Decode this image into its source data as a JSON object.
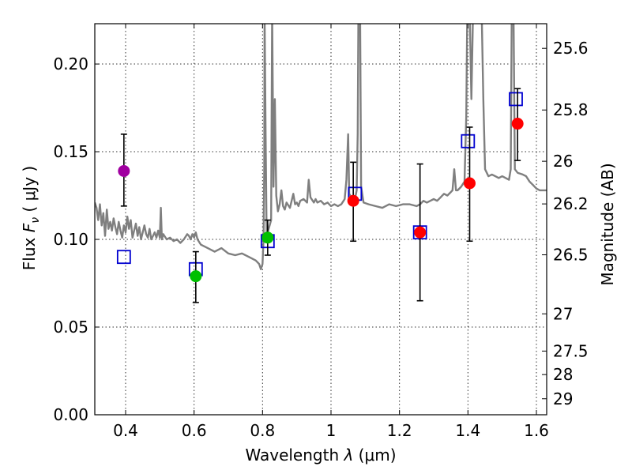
{
  "chart_data": {
    "type": "scatter",
    "title": "",
    "xlabel_prefix": "Wavelength ",
    "xlabel_symbol": "λ",
    "xlabel_unit": " (μm)",
    "ylabel_prefix": "Flux ",
    "ylabel_symbol": "F",
    "ylabel_subscript": "ν",
    "ylabel_unit": "  ( μJy )",
    "ylabel_right": "Magnitude (AB)",
    "xlim": [
      0.31,
      1.63
    ],
    "ylim": [
      0.0,
      0.223
    ],
    "grid": true,
    "x_ticks": [
      {
        "value": 0.4,
        "label": "0.4"
      },
      {
        "value": 0.6,
        "label": "0.6"
      },
      {
        "value": 0.8,
        "label": "0.8"
      },
      {
        "value": 1.0,
        "label": "1"
      },
      {
        "value": 1.2,
        "label": "1.2"
      },
      {
        "value": 1.4,
        "label": "1.4"
      },
      {
        "value": 1.6,
        "label": "1.6"
      }
    ],
    "y_ticks": [
      {
        "value": 0.0,
        "label": "0.00"
      },
      {
        "value": 0.05,
        "label": "0.05"
      },
      {
        "value": 0.1,
        "label": "0.10"
      },
      {
        "value": 0.15,
        "label": "0.15"
      },
      {
        "value": 0.2,
        "label": "0.20"
      }
    ],
    "mag_ticks": [
      {
        "value": 25.6,
        "label": "25.6"
      },
      {
        "value": 25.8,
        "label": "25.8"
      },
      {
        "value": 26.0,
        "label": "26"
      },
      {
        "value": 26.2,
        "label": "26.2"
      },
      {
        "value": 26.5,
        "label": "26.5"
      },
      {
        "value": 27.0,
        "label": "27"
      },
      {
        "value": 27.5,
        "label": "27.5"
      },
      {
        "value": 28.0,
        "label": "28"
      },
      {
        "value": 29.0,
        "label": "29"
      }
    ],
    "colors": {
      "spectrum": "#7f7f7f",
      "model": "#0000d0",
      "purple": "#a000a0",
      "green": "#00c000",
      "red": "#ff0000",
      "errorbar": "#000000"
    },
    "observed": [
      {
        "x": 0.395,
        "y": 0.139,
        "yerr_low": 0.119,
        "yerr_high": 0.16,
        "color": "purple"
      },
      {
        "x": 0.605,
        "y": 0.079,
        "yerr_low": 0.064,
        "yerr_high": 0.093,
        "color": "green"
      },
      {
        "x": 0.815,
        "y": 0.101,
        "yerr_low": 0.091,
        "yerr_high": 0.111,
        "color": "green"
      },
      {
        "x": 1.065,
        "y": 0.122,
        "yerr_low": 0.099,
        "yerr_high": 0.144,
        "color": "red"
      },
      {
        "x": 1.26,
        "y": 0.104,
        "yerr_low": 0.065,
        "yerr_high": 0.143,
        "color": "red"
      },
      {
        "x": 1.405,
        "y": 0.132,
        "yerr_low": 0.099,
        "yerr_high": 0.164,
        "color": "red"
      },
      {
        "x": 1.545,
        "y": 0.166,
        "yerr_low": 0.145,
        "yerr_high": 0.186,
        "color": "red"
      }
    ],
    "model_points": [
      {
        "x": 0.395,
        "y": 0.09
      },
      {
        "x": 0.605,
        "y": 0.083
      },
      {
        "x": 0.815,
        "y": 0.099
      },
      {
        "x": 1.07,
        "y": 0.126
      },
      {
        "x": 1.26,
        "y": 0.104
      },
      {
        "x": 1.4,
        "y": 0.156
      },
      {
        "x": 1.54,
        "y": 0.18
      }
    ],
    "spectrum": [
      [
        0.31,
        0.121
      ],
      [
        0.315,
        0.118
      ],
      [
        0.32,
        0.111
      ],
      [
        0.325,
        0.12
      ],
      [
        0.33,
        0.108
      ],
      [
        0.335,
        0.115
      ],
      [
        0.34,
        0.102
      ],
      [
        0.345,
        0.117
      ],
      [
        0.35,
        0.106
      ],
      [
        0.355,
        0.11
      ],
      [
        0.36,
        0.105
      ],
      [
        0.365,
        0.112
      ],
      [
        0.37,
        0.107
      ],
      [
        0.375,
        0.103
      ],
      [
        0.38,
        0.11
      ],
      [
        0.385,
        0.105
      ],
      [
        0.39,
        0.101
      ],
      [
        0.395,
        0.108
      ],
      [
        0.4,
        0.104
      ],
      [
        0.405,
        0.113
      ],
      [
        0.41,
        0.106
      ],
      [
        0.415,
        0.111
      ],
      [
        0.42,
        0.101
      ],
      [
        0.425,
        0.105
      ],
      [
        0.43,
        0.109
      ],
      [
        0.435,
        0.102
      ],
      [
        0.44,
        0.107
      ],
      [
        0.445,
        0.1
      ],
      [
        0.45,
        0.104
      ],
      [
        0.455,
        0.108
      ],
      [
        0.46,
        0.103
      ],
      [
        0.465,
        0.101
      ],
      [
        0.47,
        0.106
      ],
      [
        0.475,
        0.1
      ],
      [
        0.48,
        0.102
      ],
      [
        0.485,
        0.104
      ],
      [
        0.49,
        0.101
      ],
      [
        0.495,
        0.105
      ],
      [
        0.5,
        0.101
      ],
      [
        0.503,
        0.118
      ],
      [
        0.506,
        0.1
      ],
      [
        0.51,
        0.103
      ],
      [
        0.52,
        0.1
      ],
      [
        0.53,
        0.101
      ],
      [
        0.54,
        0.099
      ],
      [
        0.55,
        0.1
      ],
      [
        0.56,
        0.098
      ],
      [
        0.57,
        0.1
      ],
      [
        0.58,
        0.103
      ],
      [
        0.585,
        0.102
      ],
      [
        0.59,
        0.1
      ],
      [
        0.595,
        0.103
      ],
      [
        0.6,
        0.101
      ],
      [
        0.605,
        0.104
      ],
      [
        0.61,
        0.1
      ],
      [
        0.62,
        0.097
      ],
      [
        0.64,
        0.095
      ],
      [
        0.66,
        0.093
      ],
      [
        0.68,
        0.095
      ],
      [
        0.7,
        0.092
      ],
      [
        0.72,
        0.091
      ],
      [
        0.74,
        0.092
      ],
      [
        0.76,
        0.09
      ],
      [
        0.78,
        0.088
      ],
      [
        0.79,
        0.086
      ],
      [
        0.795,
        0.083
      ],
      [
        0.8,
        0.086
      ],
      [
        0.803,
        0.1
      ],
      [
        0.805,
        0.14
      ],
      [
        0.806,
        0.23
      ],
      [
        0.809,
        0.16
      ],
      [
        0.812,
        0.102
      ],
      [
        0.818,
        0.106
      ],
      [
        0.825,
        0.111
      ],
      [
        0.828,
        0.23
      ],
      [
        0.832,
        0.13
      ],
      [
        0.836,
        0.18
      ],
      [
        0.84,
        0.125
      ],
      [
        0.845,
        0.116
      ],
      [
        0.85,
        0.12
      ],
      [
        0.855,
        0.128
      ],
      [
        0.86,
        0.119
      ],
      [
        0.865,
        0.117
      ],
      [
        0.87,
        0.121
      ],
      [
        0.88,
        0.118
      ],
      [
        0.89,
        0.126
      ],
      [
        0.895,
        0.12
      ],
      [
        0.9,
        0.121
      ],
      [
        0.905,
        0.119
      ],
      [
        0.91,
        0.122
      ],
      [
        0.92,
        0.123
      ],
      [
        0.93,
        0.121
      ],
      [
        0.935,
        0.134
      ],
      [
        0.94,
        0.124
      ],
      [
        0.95,
        0.121
      ],
      [
        0.955,
        0.123
      ],
      [
        0.96,
        0.121
      ],
      [
        0.97,
        0.122
      ],
      [
        0.98,
        0.12
      ],
      [
        0.99,
        0.121
      ],
      [
        1.0,
        0.119
      ],
      [
        1.01,
        0.12
      ],
      [
        1.02,
        0.119
      ],
      [
        1.03,
        0.12
      ],
      [
        1.04,
        0.123
      ],
      [
        1.045,
        0.134
      ],
      [
        1.05,
        0.16
      ],
      [
        1.053,
        0.126
      ],
      [
        1.06,
        0.124
      ],
      [
        1.065,
        0.125
      ],
      [
        1.07,
        0.123
      ],
      [
        1.075,
        0.128
      ],
      [
        1.078,
        0.16
      ],
      [
        1.08,
        0.23
      ],
      [
        1.085,
        0.23
      ],
      [
        1.088,
        0.13
      ],
      [
        1.095,
        0.121
      ],
      [
        1.11,
        0.12
      ],
      [
        1.13,
        0.119
      ],
      [
        1.15,
        0.118
      ],
      [
        1.17,
        0.12
      ],
      [
        1.19,
        0.119
      ],
      [
        1.21,
        0.12
      ],
      [
        1.23,
        0.12
      ],
      [
        1.25,
        0.119
      ],
      [
        1.26,
        0.12
      ],
      [
        1.27,
        0.122
      ],
      [
        1.28,
        0.121
      ],
      [
        1.29,
        0.122
      ],
      [
        1.3,
        0.123
      ],
      [
        1.31,
        0.122
      ],
      [
        1.32,
        0.124
      ],
      [
        1.33,
        0.126
      ],
      [
        1.34,
        0.125
      ],
      [
        1.35,
        0.127
      ],
      [
        1.355,
        0.128
      ],
      [
        1.36,
        0.14
      ],
      [
        1.365,
        0.128
      ],
      [
        1.37,
        0.128
      ],
      [
        1.38,
        0.13
      ],
      [
        1.39,
        0.133
      ],
      [
        1.395,
        0.17
      ],
      [
        1.398,
        0.23
      ],
      [
        1.405,
        0.23
      ],
      [
        1.41,
        0.18
      ],
      [
        1.415,
        0.23
      ],
      [
        1.44,
        0.23
      ],
      [
        1.445,
        0.18
      ],
      [
        1.45,
        0.14
      ],
      [
        1.46,
        0.136
      ],
      [
        1.47,
        0.137
      ],
      [
        1.48,
        0.136
      ],
      [
        1.49,
        0.135
      ],
      [
        1.5,
        0.136
      ],
      [
        1.51,
        0.135
      ],
      [
        1.52,
        0.134
      ],
      [
        1.525,
        0.14
      ],
      [
        1.528,
        0.23
      ],
      [
        1.533,
        0.23
      ],
      [
        1.537,
        0.14
      ],
      [
        1.545,
        0.138
      ],
      [
        1.56,
        0.137
      ],
      [
        1.57,
        0.136
      ],
      [
        1.58,
        0.133
      ],
      [
        1.59,
        0.131
      ],
      [
        1.6,
        0.129
      ],
      [
        1.61,
        0.128
      ],
      [
        1.62,
        0.128
      ],
      [
        1.63,
        0.128
      ]
    ]
  }
}
